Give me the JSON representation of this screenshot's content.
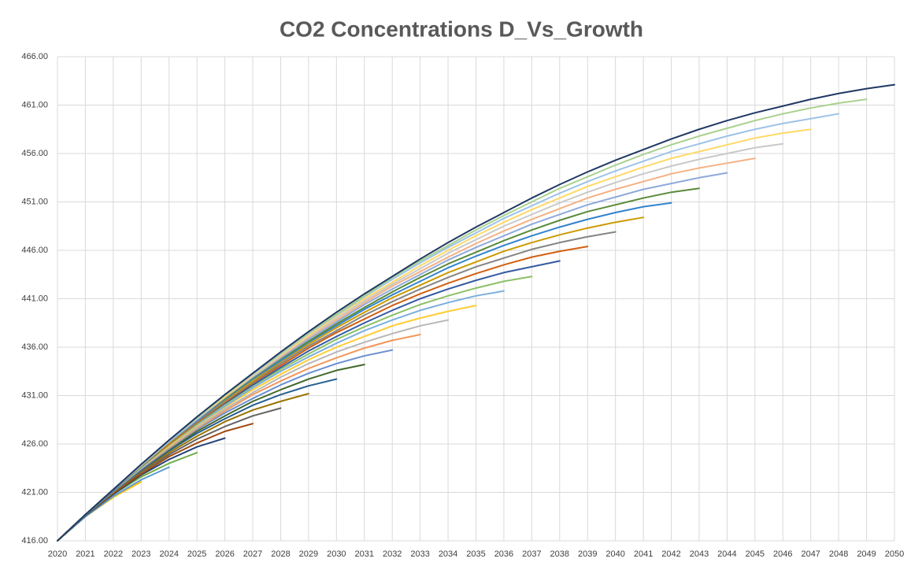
{
  "chart_data": {
    "type": "line",
    "title": "CO2 Concentrations D_Vs_Growth",
    "categories": [
      "2020",
      "2021",
      "2022",
      "2023",
      "2024",
      "2025",
      "2026",
      "2027",
      "2028",
      "2029",
      "2030",
      "2031",
      "2032",
      "2033",
      "2034",
      "2035",
      "2036",
      "2037",
      "2038",
      "2039",
      "2040",
      "2041",
      "2042",
      "2043",
      "2044",
      "2045",
      "2046",
      "2047",
      "2048",
      "2049",
      "2050"
    ],
    "ylim": [
      416,
      466
    ],
    "yticks": [
      {
        "value": 416,
        "label": "416.00"
      },
      {
        "value": 421,
        "label": "421.00"
      },
      {
        "value": 426,
        "label": "426.00"
      },
      {
        "value": 431,
        "label": "431.00"
      },
      {
        "value": 436,
        "label": "436.00"
      },
      {
        "value": 441,
        "label": "441.00"
      },
      {
        "value": 446,
        "label": "446.00"
      },
      {
        "value": 451,
        "label": "451.00"
      },
      {
        "value": 456,
        "label": "456.00"
      },
      {
        "value": 461,
        "label": "461.00"
      },
      {
        "value": 466,
        "label": "466.00"
      }
    ],
    "grid": true,
    "series": [
      {
        "color": "#ed7d31",
        "values": [
          416,
          418.7,
          null,
          null,
          null,
          null,
          null,
          null,
          null,
          null,
          null,
          null,
          null,
          null,
          null,
          null,
          null,
          null,
          null,
          null,
          null,
          null,
          null,
          null,
          null,
          null,
          null,
          null,
          null,
          null,
          null
        ]
      },
      {
        "color": "#a5a5a5",
        "values": [
          416,
          418.5,
          420.5,
          null,
          null,
          null,
          null,
          null,
          null,
          null,
          null,
          null,
          null,
          null,
          null,
          null,
          null,
          null,
          null,
          null,
          null,
          null,
          null,
          null,
          null,
          null,
          null,
          null,
          null,
          null,
          null
        ]
      },
      {
        "color": "#ffc000",
        "values": [
          416,
          418.5,
          420.5,
          422.1,
          null,
          null,
          null,
          null,
          null,
          null,
          null,
          null,
          null,
          null,
          null,
          null,
          null,
          null,
          null,
          null,
          null,
          null,
          null,
          null,
          null,
          null,
          null,
          null,
          null,
          null,
          null
        ]
      },
      {
        "color": "#5b9bd5",
        "values": [
          416,
          418.5,
          420.6,
          422.3,
          423.6,
          null,
          null,
          null,
          null,
          null,
          null,
          null,
          null,
          null,
          null,
          null,
          null,
          null,
          null,
          null,
          null,
          null,
          null,
          null,
          null,
          null,
          null,
          null,
          null,
          null,
          null
        ]
      },
      {
        "color": "#70ad47",
        "values": [
          416,
          418.6,
          420.8,
          422.6,
          424.0,
          425.1,
          null,
          null,
          null,
          null,
          null,
          null,
          null,
          null,
          null,
          null,
          null,
          null,
          null,
          null,
          null,
          null,
          null,
          null,
          null,
          null,
          null,
          null,
          null,
          null,
          null
        ]
      },
      {
        "color": "#264478",
        "values": [
          416,
          418.6,
          420.8,
          422.8,
          424.4,
          425.7,
          426.6,
          null,
          null,
          null,
          null,
          null,
          null,
          null,
          null,
          null,
          null,
          null,
          null,
          null,
          null,
          null,
          null,
          null,
          null,
          null,
          null,
          null,
          null,
          null,
          null
        ]
      },
      {
        "color": "#9e480e",
        "values": [
          416,
          418.6,
          420.9,
          422.9,
          424.7,
          426.1,
          427.3,
          428.1,
          null,
          null,
          null,
          null,
          null,
          null,
          null,
          null,
          null,
          null,
          null,
          null,
          null,
          null,
          null,
          null,
          null,
          null,
          null,
          null,
          null,
          null,
          null
        ]
      },
      {
        "color": "#636363",
        "values": [
          416,
          418.6,
          421.0,
          423.1,
          424.9,
          426.5,
          427.8,
          428.9,
          429.7,
          null,
          null,
          null,
          null,
          null,
          null,
          null,
          null,
          null,
          null,
          null,
          null,
          null,
          null,
          null,
          null,
          null,
          null,
          null,
          null,
          null,
          null
        ]
      },
      {
        "color": "#997300",
        "values": [
          416,
          418.6,
          421.0,
          423.2,
          425.1,
          426.8,
          428.3,
          429.5,
          430.4,
          431.2,
          null,
          null,
          null,
          null,
          null,
          null,
          null,
          null,
          null,
          null,
          null,
          null,
          null,
          null,
          null,
          null,
          null,
          null,
          null,
          null,
          null
        ]
      },
      {
        "color": "#255e91",
        "values": [
          416,
          418.6,
          421.1,
          423.3,
          425.3,
          427.1,
          428.6,
          430.0,
          431.1,
          432.0,
          432.7,
          null,
          null,
          null,
          null,
          null,
          null,
          null,
          null,
          null,
          null,
          null,
          null,
          null,
          null,
          null,
          null,
          null,
          null,
          null,
          null
        ]
      },
      {
        "color": "#43682b",
        "values": [
          416,
          418.7,
          421.1,
          423.4,
          425.4,
          427.3,
          428.9,
          430.4,
          431.6,
          432.7,
          433.6,
          434.2,
          null,
          null,
          null,
          null,
          null,
          null,
          null,
          null,
          null,
          null,
          null,
          null,
          null,
          null,
          null,
          null,
          null,
          null,
          null
        ]
      },
      {
        "color": "#698ed0",
        "values": [
          416,
          418.7,
          421.1,
          423.4,
          425.5,
          427.5,
          429.2,
          430.7,
          432.1,
          433.3,
          434.3,
          435.1,
          435.7,
          null,
          null,
          null,
          null,
          null,
          null,
          null,
          null,
          null,
          null,
          null,
          null,
          null,
          null,
          null,
          null,
          null,
          null
        ]
      },
      {
        "color": "#f1975a",
        "values": [
          416,
          418.7,
          421.2,
          423.5,
          425.6,
          427.6,
          429.4,
          431.1,
          432.5,
          433.8,
          434.9,
          435.9,
          436.7,
          437.3,
          null,
          null,
          null,
          null,
          null,
          null,
          null,
          null,
          null,
          null,
          null,
          null,
          null,
          null,
          null,
          null,
          null
        ]
      },
      {
        "color": "#b7b7b7",
        "values": [
          416,
          418.7,
          421.2,
          423.5,
          425.7,
          427.7,
          429.6,
          431.3,
          432.9,
          434.3,
          435.5,
          436.5,
          437.4,
          438.2,
          438.8,
          null,
          null,
          null,
          null,
          null,
          null,
          null,
          null,
          null,
          null,
          null,
          null,
          null,
          null,
          null,
          null
        ]
      },
      {
        "color": "#ffcd33",
        "values": [
          416,
          418.7,
          421.2,
          423.6,
          425.8,
          427.9,
          429.8,
          431.6,
          433.2,
          434.7,
          436.0,
          437.1,
          438.2,
          439.0,
          439.7,
          440.3,
          null,
          null,
          null,
          null,
          null,
          null,
          null,
          null,
          null,
          null,
          null,
          null,
          null,
          null,
          null
        ]
      },
      {
        "color": "#7cafdd",
        "values": [
          416,
          418.7,
          421.2,
          423.6,
          425.9,
          428.0,
          429.9,
          431.8,
          433.5,
          435.0,
          436.4,
          437.7,
          438.8,
          439.8,
          440.6,
          441.3,
          441.8,
          null,
          null,
          null,
          null,
          null,
          null,
          null,
          null,
          null,
          null,
          null,
          null,
          null,
          null
        ]
      },
      {
        "color": "#8cc168",
        "values": [
          416,
          418.7,
          421.2,
          423.6,
          425.9,
          428.1,
          430.1,
          432.0,
          433.7,
          435.3,
          436.8,
          438.1,
          439.3,
          440.4,
          441.3,
          442.1,
          442.8,
          443.3,
          null,
          null,
          null,
          null,
          null,
          null,
          null,
          null,
          null,
          null,
          null,
          null,
          null
        ]
      },
      {
        "color": "#335aa1",
        "values": [
          416,
          418.7,
          421.2,
          423.7,
          426.0,
          428.2,
          430.2,
          432.1,
          433.9,
          435.6,
          437.1,
          438.5,
          439.8,
          441.0,
          442.0,
          442.9,
          443.7,
          444.3,
          444.9,
          null,
          null,
          null,
          null,
          null,
          null,
          null,
          null,
          null,
          null,
          null,
          null
        ]
      },
      {
        "color": "#d26012",
        "values": [
          416,
          418.7,
          421.3,
          423.7,
          426.0,
          428.2,
          430.3,
          432.3,
          434.1,
          435.9,
          437.5,
          438.9,
          440.3,
          441.5,
          442.6,
          443.6,
          444.5,
          445.3,
          445.9,
          446.4,
          null,
          null,
          null,
          null,
          null,
          null,
          null,
          null,
          null,
          null,
          null
        ]
      },
      {
        "color": "#848484",
        "values": [
          416,
          418.7,
          421.3,
          423.7,
          426.1,
          428.3,
          430.4,
          432.4,
          434.3,
          436.1,
          437.7,
          439.3,
          440.7,
          442.0,
          443.2,
          444.3,
          445.2,
          446.1,
          446.8,
          447.4,
          447.9,
          null,
          null,
          null,
          null,
          null,
          null,
          null,
          null,
          null,
          null
        ]
      },
      {
        "color": "#cc9a00",
        "values": [
          416,
          418.7,
          421.3,
          423.8,
          426.1,
          428.4,
          430.5,
          432.5,
          434.5,
          436.3,
          438.0,
          439.6,
          441.1,
          442.4,
          443.7,
          444.8,
          445.9,
          446.8,
          447.6,
          448.3,
          448.9,
          449.4,
          null,
          null,
          null,
          null,
          null,
          null,
          null,
          null,
          null
        ]
      },
      {
        "color": "#3283cd",
        "values": [
          416,
          418.7,
          421.3,
          423.8,
          426.2,
          428.4,
          430.6,
          432.7,
          434.6,
          436.5,
          438.2,
          439.9,
          441.4,
          442.8,
          444.2,
          445.4,
          446.5,
          447.5,
          448.4,
          449.2,
          449.9,
          450.5,
          450.9,
          null,
          null,
          null,
          null,
          null,
          null,
          null,
          null
        ]
      },
      {
        "color": "#5a8a39",
        "values": [
          416,
          418.7,
          421.3,
          423.8,
          426.2,
          428.5,
          430.7,
          432.8,
          434.8,
          436.6,
          438.4,
          440.1,
          441.7,
          443.2,
          444.6,
          445.8,
          447.0,
          448.1,
          449.1,
          450.0,
          450.7,
          451.4,
          452.0,
          452.4,
          null,
          null,
          null,
          null,
          null,
          null,
          null
        ]
      },
      {
        "color": "#8faadc",
        "values": [
          416,
          418.7,
          421.3,
          423.8,
          426.2,
          428.5,
          430.8,
          432.9,
          434.9,
          436.8,
          438.6,
          440.4,
          442.0,
          443.5,
          445.0,
          446.3,
          447.5,
          448.7,
          449.7,
          450.7,
          451.5,
          452.3,
          452.9,
          453.5,
          454.0,
          null,
          null,
          null,
          null,
          null,
          null
        ]
      },
      {
        "color": "#f4b183",
        "values": [
          416,
          418.7,
          421.3,
          423.8,
          426.3,
          428.6,
          430.8,
          433.0,
          435.0,
          437.0,
          438.8,
          440.6,
          442.3,
          443.8,
          445.3,
          446.7,
          448.0,
          449.2,
          450.3,
          451.4,
          452.3,
          453.1,
          453.9,
          454.5,
          455.0,
          455.5,
          null,
          null,
          null,
          null,
          null
        ]
      },
      {
        "color": "#c9c9c9",
        "values": [
          416,
          418.7,
          421.3,
          423.8,
          426.3,
          428.6,
          430.9,
          433.0,
          435.1,
          437.1,
          439.0,
          440.8,
          442.5,
          444.1,
          445.7,
          447.1,
          448.5,
          449.7,
          450.9,
          452.0,
          453.0,
          453.9,
          454.7,
          455.4,
          456.0,
          456.6,
          457.0,
          null,
          null,
          null,
          null
        ]
      },
      {
        "color": "#ffd966",
        "values": [
          416,
          418.7,
          421.3,
          423.9,
          426.3,
          428.7,
          430.9,
          433.1,
          435.2,
          437.2,
          439.2,
          441.0,
          442.7,
          444.4,
          446.0,
          447.5,
          448.9,
          450.2,
          451.4,
          452.6,
          453.6,
          454.6,
          455.5,
          456.2,
          456.9,
          457.6,
          458.1,
          458.5,
          null,
          null,
          null
        ]
      },
      {
        "color": "#9dc3e6",
        "values": [
          416,
          418.7,
          421.3,
          423.9,
          426.3,
          428.7,
          431.0,
          433.2,
          435.3,
          437.4,
          439.3,
          441.2,
          443.0,
          444.7,
          446.3,
          447.8,
          449.3,
          450.6,
          451.9,
          453.1,
          454.2,
          455.2,
          456.2,
          457.0,
          457.8,
          458.5,
          459.1,
          459.6,
          460.1,
          null,
          null
        ]
      },
      {
        "color": "#a9d18e",
        "values": [
          416,
          418.7,
          421.3,
          423.9,
          426.4,
          428.7,
          431.0,
          433.3,
          435.4,
          437.5,
          439.4,
          441.3,
          443.2,
          444.9,
          446.5,
          448.1,
          449.6,
          451.0,
          452.4,
          453.6,
          454.8,
          455.9,
          456.9,
          457.8,
          458.6,
          459.4,
          460.1,
          460.7,
          461.2,
          461.6,
          null
        ]
      },
      {
        "color": "#203864",
        "values": [
          416,
          418.7,
          421.3,
          423.9,
          426.4,
          428.8,
          431.1,
          433.3,
          435.5,
          437.6,
          439.6,
          441.5,
          443.3,
          445.1,
          446.8,
          448.4,
          449.9,
          451.4,
          452.8,
          454.1,
          455.3,
          456.4,
          457.5,
          458.5,
          459.4,
          460.2,
          460.9,
          461.6,
          462.2,
          462.7,
          463.1
        ]
      }
    ]
  }
}
